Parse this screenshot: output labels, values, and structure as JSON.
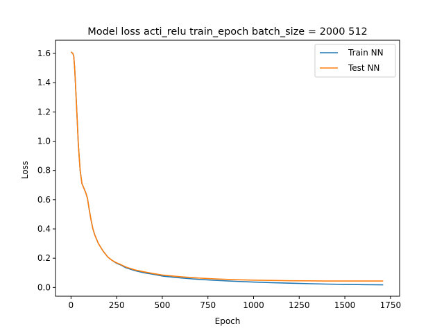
{
  "chart_data": {
    "type": "line",
    "title": "Model loss acti_relu train_epoch batch_size = 2000 512",
    "xlabel": "Epoch",
    "ylabel": "Loss",
    "xlim": [
      -85,
      1800
    ],
    "ylim": [
      -0.06,
      1.69
    ],
    "xticks": [
      0,
      250,
      500,
      750,
      1000,
      1250,
      1500,
      1750
    ],
    "yticks": [
      0.0,
      0.2,
      0.4,
      0.6,
      0.8,
      1.0,
      1.2,
      1.4,
      1.6
    ],
    "grid": false,
    "legend_position": "top-right",
    "series": [
      {
        "name": "Train NN",
        "color": "#1f77b4",
        "points": [
          [
            0,
            1.61
          ],
          [
            10,
            1.6
          ],
          [
            15,
            1.58
          ],
          [
            20,
            1.5
          ],
          [
            30,
            1.25
          ],
          [
            40,
            0.98
          ],
          [
            50,
            0.8
          ],
          [
            60,
            0.71
          ],
          [
            70,
            0.68
          ],
          [
            80,
            0.65
          ],
          [
            90,
            0.61
          ],
          [
            100,
            0.53
          ],
          [
            110,
            0.46
          ],
          [
            120,
            0.4
          ],
          [
            130,
            0.36
          ],
          [
            140,
            0.33
          ],
          [
            150,
            0.3
          ],
          [
            175,
            0.25
          ],
          [
            200,
            0.21
          ],
          [
            225,
            0.185
          ],
          [
            250,
            0.165
          ],
          [
            275,
            0.152
          ],
          [
            300,
            0.135
          ],
          [
            350,
            0.115
          ],
          [
            400,
            0.1
          ],
          [
            450,
            0.09
          ],
          [
            500,
            0.078
          ],
          [
            600,
            0.065
          ],
          [
            700,
            0.055
          ],
          [
            800,
            0.048
          ],
          [
            900,
            0.042
          ],
          [
            1000,
            0.037
          ],
          [
            1100,
            0.033
          ],
          [
            1200,
            0.029
          ],
          [
            1300,
            0.026
          ],
          [
            1400,
            0.023
          ],
          [
            1500,
            0.021
          ],
          [
            1600,
            0.019
          ],
          [
            1710,
            0.018
          ]
        ]
      },
      {
        "name": "Test NN",
        "color": "#ff7f0e",
        "points": [
          [
            0,
            1.61
          ],
          [
            10,
            1.6
          ],
          [
            15,
            1.58
          ],
          [
            20,
            1.5
          ],
          [
            30,
            1.25
          ],
          [
            40,
            0.98
          ],
          [
            50,
            0.8
          ],
          [
            60,
            0.71
          ],
          [
            70,
            0.68
          ],
          [
            80,
            0.65
          ],
          [
            90,
            0.61
          ],
          [
            100,
            0.53
          ],
          [
            110,
            0.46
          ],
          [
            120,
            0.4
          ],
          [
            130,
            0.36
          ],
          [
            140,
            0.33
          ],
          [
            150,
            0.3
          ],
          [
            175,
            0.25
          ],
          [
            200,
            0.21
          ],
          [
            225,
            0.185
          ],
          [
            250,
            0.168
          ],
          [
            275,
            0.155
          ],
          [
            300,
            0.14
          ],
          [
            350,
            0.12
          ],
          [
            400,
            0.107
          ],
          [
            450,
            0.095
          ],
          [
            500,
            0.085
          ],
          [
            600,
            0.073
          ],
          [
            700,
            0.064
          ],
          [
            800,
            0.058
          ],
          [
            900,
            0.053
          ],
          [
            1000,
            0.05
          ],
          [
            1100,
            0.048
          ],
          [
            1200,
            0.046
          ],
          [
            1300,
            0.045
          ],
          [
            1400,
            0.044
          ],
          [
            1500,
            0.044
          ],
          [
            1600,
            0.044
          ],
          [
            1710,
            0.044
          ]
        ]
      }
    ]
  }
}
